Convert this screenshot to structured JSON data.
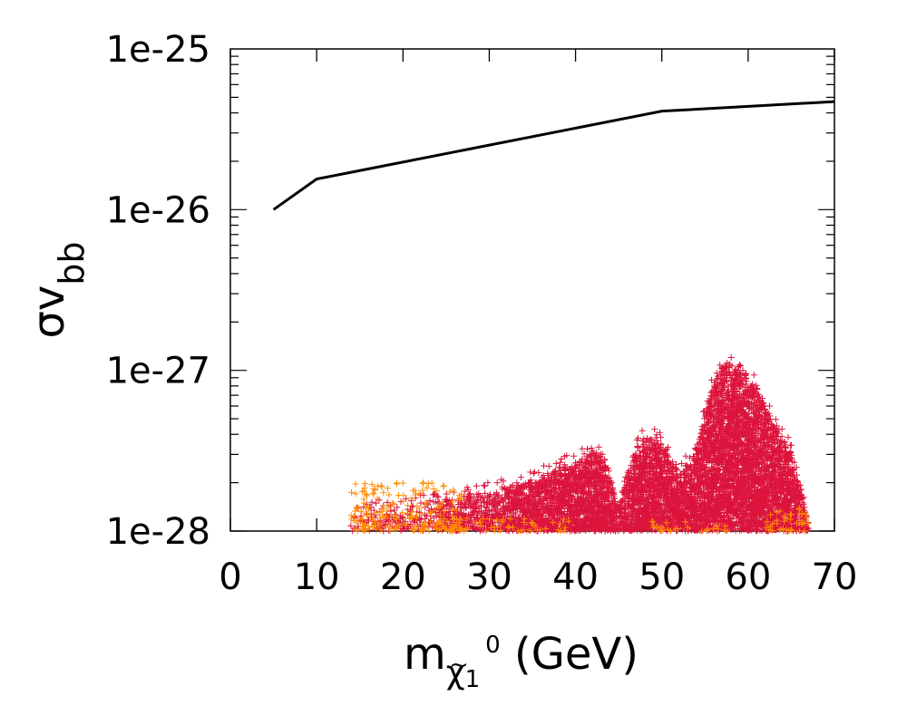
{
  "chart_data": {
    "type": "scatter",
    "title": "",
    "xlabel": {
      "base": "m",
      "sub_chi": "χ",
      "sub_tilde": "~",
      "sub_index": "1",
      "sup": "0",
      "unit": " (GeV)"
    },
    "ylabel": {
      "base": "σv",
      "sub": "bb"
    },
    "xlim": [
      0,
      70
    ],
    "ylim": [
      1e-28,
      1e-25
    ],
    "yscale": "log",
    "x_ticks": [
      "0",
      "10",
      "20",
      "30",
      "40",
      "50",
      "60",
      "70"
    ],
    "y_ticks": [
      "1e-28",
      "1e-27",
      "1e-26",
      "1e-25"
    ],
    "grid": false,
    "legend": "none",
    "colors": {
      "limit_line": "#000000",
      "scan_red": "#dc143c",
      "scan_orange": "#ff8c00"
    },
    "series": [
      {
        "kind": "line",
        "color": "#000000",
        "x": [
          5,
          10,
          50,
          70
        ],
        "y": [
          1e-26,
          1.55e-26,
          4.1e-26,
          4.7e-26
        ]
      },
      {
        "kind": "scatter-region",
        "color": "#dc143c",
        "marker": "+",
        "upper_envelope": {
          "x": [
            14,
            16,
            18,
            20,
            22,
            24,
            26,
            28,
            30,
            32,
            34,
            36,
            38,
            40,
            42,
            43,
            44,
            45,
            46,
            47,
            48,
            49,
            50,
            51,
            52,
            53,
            54,
            55,
            56,
            57,
            58,
            59,
            60,
            61,
            62,
            63,
            64,
            65,
            66,
            67
          ],
          "y": [
            1.3e-28,
            1.35e-28,
            1.4e-28,
            1.45e-28,
            1.5e-28,
            1.55e-28,
            1.6e-28,
            1.7e-28,
            1.8e-28,
            1.9e-28,
            2e-28,
            2.2e-28,
            2.5e-28,
            2.8e-28,
            3.1e-28,
            3.1e-28,
            2.2e-28,
            1.4e-28,
            2.2e-28,
            3.3e-28,
            3.9e-28,
            3.9e-28,
            3.6e-28,
            2.9e-28,
            2.5e-28,
            2.6e-28,
            3.2e-28,
            5.5e-28,
            8.5e-28,
            1.05e-27,
            1.1e-27,
            1.05e-27,
            9.5e-28,
            8e-28,
            6e-28,
            4.6e-28,
            4e-28,
            3.1e-28,
            2e-28,
            1.2e-28
          ]
        }
      },
      {
        "kind": "scatter-region",
        "color": "#ff8c00",
        "marker": "+",
        "clusters": [
          {
            "x": [
              14,
              27
            ],
            "y": [
              1e-28,
              2e-28
            ]
          },
          {
            "x": [
              24,
              40
            ],
            "y": [
              1e-28,
              1.2e-28
            ]
          },
          {
            "x": [
              48,
              58
            ],
            "y": [
              1e-28,
              1.15e-28
            ]
          },
          {
            "x": [
              62,
              67
            ],
            "y": [
              1e-28,
              1.45e-28
            ]
          }
        ]
      }
    ]
  }
}
